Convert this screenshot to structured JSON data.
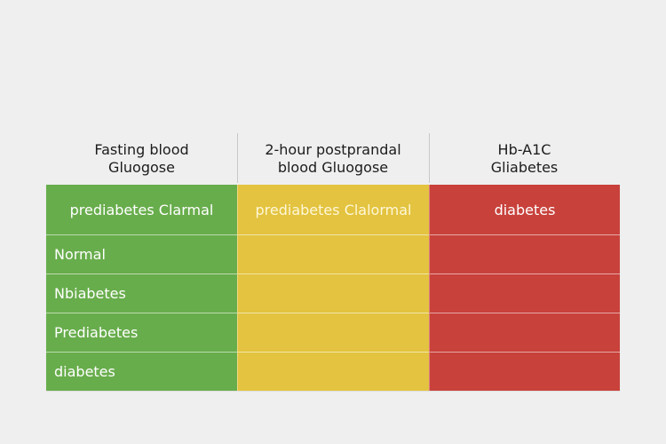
{
  "table": {
    "headers": [
      "Fasting blood\nGluogose",
      "2-hour postprandal\nblood Gluogose",
      "Hb-A1C\nGliabetes"
    ],
    "columns": [
      {
        "color": "#68ad4c",
        "cells": [
          "prediabetes Clarmal",
          "Normal",
          "Nbiabetes",
          "Prediabetes",
          "diabetes"
        ]
      },
      {
        "color": "#e3c33f",
        "cells": [
          "prediabetes Clalormal",
          "",
          "",
          "",
          ""
        ]
      },
      {
        "color": "#c8413b",
        "cells": [
          "diabetes",
          "",
          "",
          "",
          ""
        ]
      }
    ]
  }
}
